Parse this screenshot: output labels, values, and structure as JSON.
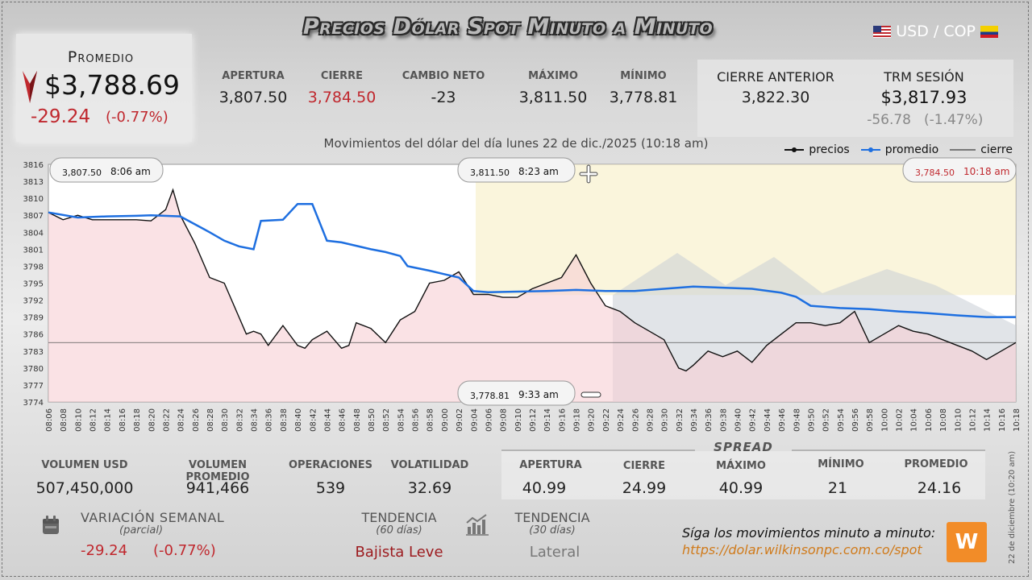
{
  "header": {
    "title": "Precios Dólar Spot Minuto a Minuto",
    "pair": "USD / COP"
  },
  "promedio": {
    "label": "Promedio",
    "value": "$3,788.69",
    "change": "-29.24",
    "change_pct": "(-0.77%)"
  },
  "stats": [
    {
      "label": "APERTURA",
      "value": "3,807.50",
      "color": "#222222"
    },
    {
      "label": "CIERRE",
      "value": "3,784.50",
      "color": "#c0282e"
    },
    {
      "label": "CAMBIO NETO",
      "value": "-23",
      "color": "#222222"
    },
    {
      "label": "MÁXIMO",
      "value": "3,811.50",
      "color": "#222222"
    },
    {
      "label": "MÍNIMO",
      "value": "3,778.81",
      "color": "#222222"
    }
  ],
  "cierre_anterior": {
    "label": "CIERRE ANTERIOR",
    "value": "3,822.30"
  },
  "trm": {
    "label": "TRM SESIÓN",
    "value": "$3,817.93",
    "change": "-56.78",
    "change_pct": "(-1.47%)"
  },
  "subtitle": "Movimientos del dólar del día lunes 22 de dic./2025 (10:18 am)",
  "legend": {
    "precios": "precios",
    "promedio": "promedio",
    "cierre": "cierre"
  },
  "chart_data": {
    "type": "line",
    "title": "Movimientos del dólar del día lunes 22 de dic./2025 (10:18 am)",
    "ylim": [
      3774,
      3816
    ],
    "yticks": [
      "3816",
      "3813",
      "3810",
      "3807",
      "3804",
      "3801",
      "3798",
      "3795",
      "3792",
      "3789",
      "3786",
      "3783",
      "3780",
      "3777",
      "3774"
    ],
    "xticks": [
      "08:06",
      "08:08",
      "08:10",
      "08:12",
      "08:14",
      "08:16",
      "08:18",
      "08:20",
      "08:22",
      "08:24",
      "08:26",
      "08:28",
      "08:30",
      "08:32",
      "08:34",
      "08:36",
      "08:38",
      "08:40",
      "08:42",
      "08:44",
      "08:46",
      "08:48",
      "08:50",
      "08:52",
      "08:54",
      "08:56",
      "08:58",
      "09:00",
      "09:02",
      "09:04",
      "09:06",
      "09:08",
      "09:10",
      "09:12",
      "09:14",
      "09:16",
      "09:18",
      "09:20",
      "09:22",
      "09:24",
      "09:26",
      "09:28",
      "09:30",
      "09:32",
      "09:34",
      "09:36",
      "09:38",
      "09:40",
      "09:42",
      "09:44",
      "09:46",
      "09:48",
      "09:50",
      "09:52",
      "09:54",
      "09:56",
      "09:58",
      "10:00",
      "10:02",
      "10:04",
      "10:06",
      "10:08",
      "10:10",
      "10:12",
      "10:14",
      "10:16",
      "10:18"
    ],
    "series": [
      {
        "name": "precios",
        "color": "#111111",
        "points": [
          [
            "08:06",
            3807.5
          ],
          [
            "08:08",
            3806.2
          ],
          [
            "08:10",
            3807.0
          ],
          [
            "08:12",
            3806.2
          ],
          [
            "08:14",
            3806.2
          ],
          [
            "08:16",
            3806.2
          ],
          [
            "08:18",
            3806.2
          ],
          [
            "08:20",
            3806.0
          ],
          [
            "08:22",
            3808.0
          ],
          [
            "08:23",
            3811.5
          ],
          [
            "08:24",
            3807.0
          ],
          [
            "08:26",
            3802.0
          ],
          [
            "08:28",
            3796.0
          ],
          [
            "08:29",
            3795.5
          ],
          [
            "08:30",
            3795.0
          ],
          [
            "08:32",
            3789.0
          ],
          [
            "08:33",
            3786.0
          ],
          [
            "08:34",
            3786.5
          ],
          [
            "08:35",
            3786.0
          ],
          [
            "08:36",
            3784.0
          ],
          [
            "08:38",
            3787.5
          ],
          [
            "08:40",
            3784.0
          ],
          [
            "08:41",
            3783.5
          ],
          [
            "08:42",
            3785.0
          ],
          [
            "08:44",
            3786.5
          ],
          [
            "08:46",
            3783.5
          ],
          [
            "08:47",
            3784.0
          ],
          [
            "08:48",
            3788.0
          ],
          [
            "08:50",
            3787.0
          ],
          [
            "08:52",
            3784.5
          ],
          [
            "08:54",
            3788.5
          ],
          [
            "08:56",
            3790.0
          ],
          [
            "08:58",
            3795.0
          ],
          [
            "09:00",
            3795.5
          ],
          [
            "09:02",
            3797.0
          ],
          [
            "09:04",
            3793.0
          ],
          [
            "09:06",
            3793.0
          ],
          [
            "09:08",
            3792.5
          ],
          [
            "09:10",
            3792.5
          ],
          [
            "09:12",
            3794.0
          ],
          [
            "09:14",
            3795.0
          ],
          [
            "09:16",
            3796.0
          ],
          [
            "09:18",
            3800.0
          ],
          [
            "09:20",
            3795.0
          ],
          [
            "09:22",
            3791.0
          ],
          [
            "09:24",
            3790.0
          ],
          [
            "09:26",
            3788.0
          ],
          [
            "09:28",
            3786.5
          ],
          [
            "09:30",
            3785.0
          ],
          [
            "09:32",
            3780.0
          ],
          [
            "09:33",
            3779.5
          ],
          [
            "09:34",
            3780.5
          ],
          [
            "09:36",
            3783.0
          ],
          [
            "09:38",
            3782.0
          ],
          [
            "09:40",
            3783.0
          ],
          [
            "09:42",
            3781.0
          ],
          [
            "09:44",
            3784.0
          ],
          [
            "09:46",
            3786.0
          ],
          [
            "09:48",
            3788.0
          ],
          [
            "09:50",
            3788.0
          ],
          [
            "09:52",
            3787.5
          ],
          [
            "09:54",
            3788.0
          ],
          [
            "09:56",
            3790.0
          ],
          [
            "09:58",
            3784.5
          ],
          [
            "10:00",
            3786.0
          ],
          [
            "10:02",
            3787.5
          ],
          [
            "10:04",
            3786.5
          ],
          [
            "10:06",
            3786.0
          ],
          [
            "10:08",
            3785.0
          ],
          [
            "10:10",
            3784.0
          ],
          [
            "10:12",
            3783.0
          ],
          [
            "10:14",
            3781.5
          ],
          [
            "10:16",
            3783.0
          ],
          [
            "10:18",
            3784.5
          ]
        ]
      },
      {
        "name": "promedio",
        "color": "#1e6fe0",
        "points": [
          [
            "08:06",
            3807.5
          ],
          [
            "08:10",
            3806.6
          ],
          [
            "08:14",
            3806.8
          ],
          [
            "08:18",
            3806.9
          ],
          [
            "08:20",
            3807.0
          ],
          [
            "08:24",
            3806.8
          ],
          [
            "08:28",
            3804.0
          ],
          [
            "08:30",
            3802.5
          ],
          [
            "08:32",
            3801.5
          ],
          [
            "08:34",
            3801.0
          ],
          [
            "08:35",
            3806.0
          ],
          [
            "08:38",
            3806.2
          ],
          [
            "08:40",
            3809.0
          ],
          [
            "08:42",
            3809.0
          ],
          [
            "08:44",
            3802.5
          ],
          [
            "08:46",
            3802.2
          ],
          [
            "08:48",
            3801.6
          ],
          [
            "08:50",
            3801.0
          ],
          [
            "08:52",
            3800.5
          ],
          [
            "08:54",
            3799.8
          ],
          [
            "08:55",
            3798.0
          ],
          [
            "08:58",
            3797.2
          ],
          [
            "09:00",
            3796.6
          ],
          [
            "09:02",
            3796.0
          ],
          [
            "09:04",
            3793.6
          ],
          [
            "09:06",
            3793.4
          ],
          [
            "09:10",
            3793.5
          ],
          [
            "09:14",
            3793.6
          ],
          [
            "09:18",
            3793.8
          ],
          [
            "09:22",
            3793.6
          ],
          [
            "09:26",
            3793.6
          ],
          [
            "09:30",
            3794.0
          ],
          [
            "09:34",
            3794.4
          ],
          [
            "09:38",
            3794.2
          ],
          [
            "09:42",
            3794.0
          ],
          [
            "09:46",
            3793.3
          ],
          [
            "09:48",
            3792.6
          ],
          [
            "09:50",
            3791.0
          ],
          [
            "09:54",
            3790.6
          ],
          [
            "09:58",
            3790.4
          ],
          [
            "10:02",
            3790.0
          ],
          [
            "10:06",
            3789.7
          ],
          [
            "10:10",
            3789.3
          ],
          [
            "10:14",
            3789.0
          ],
          [
            "10:18",
            3789.0
          ]
        ]
      }
    ],
    "cierre_line": 3784.5,
    "annotations": [
      {
        "price": "3,807.50",
        "time": "8:06 am",
        "position": "top-left"
      },
      {
        "price": "3,811.50",
        "time": "8:23 am",
        "position": "top-center"
      },
      {
        "price": "3,784.50",
        "time": "10:18 am",
        "position": "top-right",
        "color": "#c0282e"
      },
      {
        "price": "3,778.81",
        "time": "9:33 am",
        "position": "bottom-center"
      }
    ],
    "legend_position": "top-right"
  },
  "volume": [
    {
      "label": "VOLUMEN USD",
      "value": "507,450,000"
    },
    {
      "label": "VOLUMEN PROMEDIO",
      "value": "941,466"
    },
    {
      "label": "OPERACIONES",
      "value": "539"
    },
    {
      "label": "VOLATILIDAD",
      "value": "32.69"
    }
  ],
  "spread": {
    "title": "SPREAD",
    "items": [
      {
        "label": "APERTURA",
        "value": "40.99"
      },
      {
        "label": "CIERRE",
        "value": "24.99"
      },
      {
        "label": "MÁXIMO",
        "value": "40.99"
      },
      {
        "label": "MÍNIMO",
        "value": "21"
      },
      {
        "label": "PROMEDIO",
        "value": "24.16"
      }
    ]
  },
  "semanal": {
    "label": "VARIACIÓN SEMANAL",
    "sub": "(parcial)",
    "change": "-29.24",
    "pct": "(-0.77%)"
  },
  "tend60": {
    "label": "TENDENCIA",
    "sub": "(60 días)",
    "value": "Bajista Leve"
  },
  "tend30": {
    "label": "TENDENCIA",
    "sub": "(30 días)",
    "value": "Lateral"
  },
  "follow": {
    "text": "Síga los movimientos minuto a minuto:",
    "url": "https://dolar.wilkinsonpc.com.co/spot"
  },
  "side_date": "22 de diciembre (10:20 am)"
}
